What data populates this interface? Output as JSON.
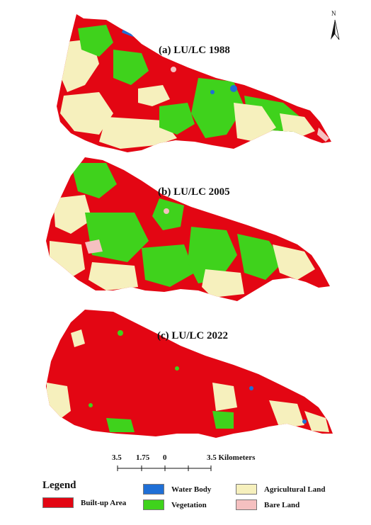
{
  "panels": [
    {
      "id": "a",
      "title": "(a)  LU/LC 1988"
    },
    {
      "id": "b",
      "title": "(b)  LU/LC 2005"
    },
    {
      "id": "c",
      "title": "(c)  LU/LC 2022"
    }
  ],
  "north_arrow": {
    "label": "N"
  },
  "scale_bar": {
    "ticks": [
      "3.5",
      "1.75",
      "0",
      "3.5 Kilometers"
    ]
  },
  "legend": {
    "title": "Legend",
    "items": [
      {
        "label": "Built-up Area",
        "color": "#e30613"
      },
      {
        "label": "Water Body",
        "color": "#1f6fd6"
      },
      {
        "label": "Vegetation",
        "color": "#3fd21c"
      },
      {
        "label": "Agricultural Land",
        "color": "#f6f0bd"
      },
      {
        "label": "Bare Land",
        "color": "#f5c0c0"
      }
    ]
  },
  "colors": {
    "built_up": "#e30613",
    "vegetation": "#3fd21c",
    "agricultural": "#f6f0bd",
    "water": "#1f6fd6",
    "bare": "#f5c0c0"
  }
}
